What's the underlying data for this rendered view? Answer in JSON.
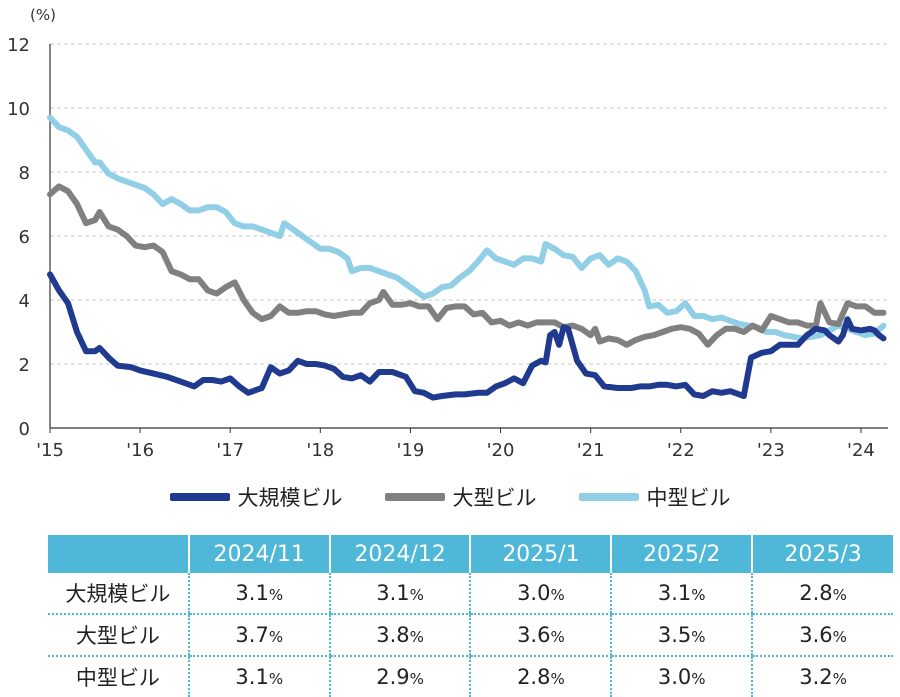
{
  "chart_data": {
    "type": "line",
    "title": "",
    "ylabel": "(%)",
    "xlabel": "",
    "ylim": [
      0,
      12
    ],
    "yticks": [
      "0",
      "2",
      "4",
      "6",
      "8",
      "10",
      "12"
    ],
    "xlim": [
      2015,
      2024.3
    ],
    "xticks": [
      {
        "x": 2015,
        "label": "'15"
      },
      {
        "x": 2016,
        "label": "'16"
      },
      {
        "x": 2017,
        "label": "'17"
      },
      {
        "x": 2018,
        "label": "'18"
      },
      {
        "x": 2019,
        "label": "'19"
      },
      {
        "x": 2020,
        "label": "'20"
      },
      {
        "x": 2021,
        "label": "'21"
      },
      {
        "x": 2022,
        "label": "'22"
      },
      {
        "x": 2023,
        "label": "'23"
      },
      {
        "x": 2024,
        "label": "'24"
      }
    ],
    "grid": true,
    "series": [
      {
        "name": "大規模ビル",
        "color": "#1f3a8f",
        "points": [
          [
            2015.0,
            4.8
          ],
          [
            2015.1,
            4.3
          ],
          [
            2015.2,
            3.9
          ],
          [
            2015.3,
            3.0
          ],
          [
            2015.4,
            2.4
          ],
          [
            2015.5,
            2.4
          ],
          [
            2015.55,
            2.5
          ],
          [
            2015.65,
            2.2
          ],
          [
            2015.75,
            1.95
          ],
          [
            2015.9,
            1.9
          ],
          [
            2016.0,
            1.8
          ],
          [
            2016.15,
            1.7
          ],
          [
            2016.3,
            1.6
          ],
          [
            2016.45,
            1.45
          ],
          [
            2016.6,
            1.3
          ],
          [
            2016.7,
            1.5
          ],
          [
            2016.8,
            1.5
          ],
          [
            2016.9,
            1.45
          ],
          [
            2017.0,
            1.55
          ],
          [
            2017.1,
            1.3
          ],
          [
            2017.2,
            1.1
          ],
          [
            2017.3,
            1.2
          ],
          [
            2017.35,
            1.25
          ],
          [
            2017.45,
            1.9
          ],
          [
            2017.55,
            1.7
          ],
          [
            2017.65,
            1.8
          ],
          [
            2017.75,
            2.1
          ],
          [
            2017.85,
            2.0
          ],
          [
            2017.95,
            2.0
          ],
          [
            2018.05,
            1.95
          ],
          [
            2018.15,
            1.85
          ],
          [
            2018.25,
            1.6
          ],
          [
            2018.35,
            1.55
          ],
          [
            2018.45,
            1.65
          ],
          [
            2018.55,
            1.45
          ],
          [
            2018.65,
            1.75
          ],
          [
            2018.8,
            1.75
          ],
          [
            2018.95,
            1.6
          ],
          [
            2019.05,
            1.15
          ],
          [
            2019.15,
            1.1
          ],
          [
            2019.25,
            0.95
          ],
          [
            2019.35,
            1.0
          ],
          [
            2019.5,
            1.05
          ],
          [
            2019.6,
            1.05
          ],
          [
            2019.75,
            1.1
          ],
          [
            2019.85,
            1.1
          ],
          [
            2019.95,
            1.3
          ],
          [
            2020.05,
            1.4
          ],
          [
            2020.15,
            1.55
          ],
          [
            2020.25,
            1.4
          ],
          [
            2020.35,
            1.95
          ],
          [
            2020.45,
            2.1
          ],
          [
            2020.5,
            2.05
          ],
          [
            2020.55,
            2.9
          ],
          [
            2020.6,
            3.0
          ],
          [
            2020.65,
            2.6
          ],
          [
            2020.7,
            3.15
          ],
          [
            2020.75,
            3.1
          ],
          [
            2020.85,
            2.1
          ],
          [
            2020.95,
            1.7
          ],
          [
            2021.05,
            1.65
          ],
          [
            2021.15,
            1.3
          ],
          [
            2021.3,
            1.25
          ],
          [
            2021.45,
            1.25
          ],
          [
            2021.55,
            1.3
          ],
          [
            2021.65,
            1.3
          ],
          [
            2021.75,
            1.35
          ],
          [
            2021.85,
            1.35
          ],
          [
            2021.95,
            1.3
          ],
          [
            2022.05,
            1.35
          ],
          [
            2022.15,
            1.05
          ],
          [
            2022.25,
            1.0
          ],
          [
            2022.35,
            1.15
          ],
          [
            2022.45,
            1.1
          ],
          [
            2022.55,
            1.15
          ],
          [
            2022.65,
            1.05
          ],
          [
            2022.7,
            1.0
          ],
          [
            2022.78,
            2.2
          ],
          [
            2022.9,
            2.35
          ],
          [
            2023.0,
            2.4
          ],
          [
            2023.1,
            2.6
          ],
          [
            2023.2,
            2.6
          ],
          [
            2023.3,
            2.6
          ],
          [
            2023.4,
            2.9
          ],
          [
            2023.5,
            3.1
          ],
          [
            2023.6,
            3.05
          ],
          [
            2023.65,
            2.9
          ],
          [
            2023.75,
            2.7
          ],
          [
            2023.8,
            2.9
          ],
          [
            2023.85,
            3.4
          ],
          [
            2023.9,
            3.1
          ],
          [
            2024.0,
            3.05
          ],
          [
            2024.1,
            3.1
          ],
          [
            2024.15,
            3.05
          ],
          [
            2024.2,
            2.9
          ],
          [
            2024.25,
            2.8
          ]
        ]
      },
      {
        "name": "大型ビル",
        "color": "#808080",
        "points": [
          [
            2015.0,
            7.3
          ],
          [
            2015.1,
            7.55
          ],
          [
            2015.2,
            7.4
          ],
          [
            2015.3,
            7.0
          ],
          [
            2015.4,
            6.4
          ],
          [
            2015.5,
            6.5
          ],
          [
            2015.55,
            6.75
          ],
          [
            2015.65,
            6.3
          ],
          [
            2015.75,
            6.2
          ],
          [
            2015.85,
            6.0
          ],
          [
            2015.95,
            5.7
          ],
          [
            2016.05,
            5.65
          ],
          [
            2016.15,
            5.7
          ],
          [
            2016.25,
            5.5
          ],
          [
            2016.35,
            4.9
          ],
          [
            2016.45,
            4.8
          ],
          [
            2016.55,
            4.65
          ],
          [
            2016.65,
            4.65
          ],
          [
            2016.75,
            4.3
          ],
          [
            2016.85,
            4.2
          ],
          [
            2016.95,
            4.4
          ],
          [
            2017.05,
            4.55
          ],
          [
            2017.15,
            4.0
          ],
          [
            2017.25,
            3.6
          ],
          [
            2017.35,
            3.4
          ],
          [
            2017.45,
            3.5
          ],
          [
            2017.55,
            3.8
          ],
          [
            2017.65,
            3.6
          ],
          [
            2017.75,
            3.6
          ],
          [
            2017.85,
            3.65
          ],
          [
            2017.95,
            3.65
          ],
          [
            2018.05,
            3.55
          ],
          [
            2018.15,
            3.5
          ],
          [
            2018.25,
            3.55
          ],
          [
            2018.35,
            3.6
          ],
          [
            2018.45,
            3.6
          ],
          [
            2018.55,
            3.9
          ],
          [
            2018.65,
            4.0
          ],
          [
            2018.7,
            4.25
          ],
          [
            2018.8,
            3.85
          ],
          [
            2018.9,
            3.85
          ],
          [
            2019.0,
            3.9
          ],
          [
            2019.1,
            3.8
          ],
          [
            2019.2,
            3.8
          ],
          [
            2019.3,
            3.4
          ],
          [
            2019.4,
            3.75
          ],
          [
            2019.5,
            3.8
          ],
          [
            2019.6,
            3.8
          ],
          [
            2019.7,
            3.55
          ],
          [
            2019.8,
            3.6
          ],
          [
            2019.9,
            3.3
          ],
          [
            2020.0,
            3.35
          ],
          [
            2020.1,
            3.2
          ],
          [
            2020.2,
            3.3
          ],
          [
            2020.3,
            3.2
          ],
          [
            2020.4,
            3.3
          ],
          [
            2020.5,
            3.3
          ],
          [
            2020.6,
            3.3
          ],
          [
            2020.7,
            3.15
          ],
          [
            2020.8,
            3.2
          ],
          [
            2020.9,
            3.1
          ],
          [
            2021.0,
            2.9
          ],
          [
            2021.05,
            3.1
          ],
          [
            2021.1,
            2.7
          ],
          [
            2021.2,
            2.8
          ],
          [
            2021.3,
            2.75
          ],
          [
            2021.4,
            2.6
          ],
          [
            2021.5,
            2.75
          ],
          [
            2021.6,
            2.85
          ],
          [
            2021.7,
            2.9
          ],
          [
            2021.8,
            3.0
          ],
          [
            2021.9,
            3.1
          ],
          [
            2022.0,
            3.15
          ],
          [
            2022.1,
            3.1
          ],
          [
            2022.2,
            2.95
          ],
          [
            2022.3,
            2.6
          ],
          [
            2022.4,
            2.9
          ],
          [
            2022.5,
            3.1
          ],
          [
            2022.6,
            3.1
          ],
          [
            2022.7,
            3.0
          ],
          [
            2022.8,
            3.2
          ],
          [
            2022.9,
            3.05
          ],
          [
            2023.0,
            3.5
          ],
          [
            2023.1,
            3.4
          ],
          [
            2023.2,
            3.3
          ],
          [
            2023.3,
            3.3
          ],
          [
            2023.4,
            3.2
          ],
          [
            2023.5,
            3.2
          ],
          [
            2023.55,
            3.9
          ],
          [
            2023.65,
            3.3
          ],
          [
            2023.75,
            3.25
          ],
          [
            2023.85,
            3.9
          ],
          [
            2023.95,
            3.8
          ],
          [
            2024.05,
            3.8
          ],
          [
            2024.15,
            3.6
          ],
          [
            2024.25,
            3.6
          ]
        ]
      },
      {
        "name": "中型ビル",
        "color": "#90cfe6",
        "points": [
          [
            2015.0,
            9.7
          ],
          [
            2015.1,
            9.4
          ],
          [
            2015.2,
            9.3
          ],
          [
            2015.3,
            9.1
          ],
          [
            2015.4,
            8.7
          ],
          [
            2015.5,
            8.3
          ],
          [
            2015.55,
            8.3
          ],
          [
            2015.65,
            7.95
          ],
          [
            2015.75,
            7.8
          ],
          [
            2015.85,
            7.7
          ],
          [
            2015.95,
            7.6
          ],
          [
            2016.05,
            7.5
          ],
          [
            2016.15,
            7.3
          ],
          [
            2016.25,
            7.0
          ],
          [
            2016.35,
            7.15
          ],
          [
            2016.45,
            7.0
          ],
          [
            2016.55,
            6.8
          ],
          [
            2016.65,
            6.8
          ],
          [
            2016.75,
            6.9
          ],
          [
            2016.85,
            6.9
          ],
          [
            2016.95,
            6.75
          ],
          [
            2017.05,
            6.4
          ],
          [
            2017.15,
            6.3
          ],
          [
            2017.25,
            6.3
          ],
          [
            2017.35,
            6.2
          ],
          [
            2017.45,
            6.1
          ],
          [
            2017.55,
            6.0
          ],
          [
            2017.6,
            6.4
          ],
          [
            2017.7,
            6.2
          ],
          [
            2017.8,
            6.0
          ],
          [
            2017.9,
            5.8
          ],
          [
            2018.0,
            5.6
          ],
          [
            2018.1,
            5.6
          ],
          [
            2018.2,
            5.5
          ],
          [
            2018.3,
            5.3
          ],
          [
            2018.35,
            4.9
          ],
          [
            2018.45,
            5.0
          ],
          [
            2018.55,
            5.0
          ],
          [
            2018.65,
            4.9
          ],
          [
            2018.75,
            4.8
          ],
          [
            2018.85,
            4.7
          ],
          [
            2018.95,
            4.5
          ],
          [
            2019.05,
            4.3
          ],
          [
            2019.15,
            4.1
          ],
          [
            2019.25,
            4.2
          ],
          [
            2019.35,
            4.4
          ],
          [
            2019.45,
            4.45
          ],
          [
            2019.55,
            4.7
          ],
          [
            2019.65,
            4.9
          ],
          [
            2019.75,
            5.2
          ],
          [
            2019.85,
            5.55
          ],
          [
            2019.95,
            5.3
          ],
          [
            2020.05,
            5.2
          ],
          [
            2020.15,
            5.1
          ],
          [
            2020.25,
            5.3
          ],
          [
            2020.35,
            5.3
          ],
          [
            2020.45,
            5.2
          ],
          [
            2020.5,
            5.75
          ],
          [
            2020.6,
            5.6
          ],
          [
            2020.7,
            5.4
          ],
          [
            2020.8,
            5.35
          ],
          [
            2020.9,
            5.0
          ],
          [
            2021.0,
            5.3
          ],
          [
            2021.1,
            5.4
          ],
          [
            2021.2,
            5.1
          ],
          [
            2021.3,
            5.3
          ],
          [
            2021.4,
            5.2
          ],
          [
            2021.5,
            4.9
          ],
          [
            2021.6,
            4.3
          ],
          [
            2021.65,
            3.8
          ],
          [
            2021.75,
            3.85
          ],
          [
            2021.85,
            3.6
          ],
          [
            2021.95,
            3.65
          ],
          [
            2022.05,
            3.9
          ],
          [
            2022.15,
            3.5
          ],
          [
            2022.25,
            3.5
          ],
          [
            2022.35,
            3.4
          ],
          [
            2022.45,
            3.45
          ],
          [
            2022.55,
            3.35
          ],
          [
            2022.65,
            3.25
          ],
          [
            2022.75,
            3.2
          ],
          [
            2022.85,
            3.15
          ],
          [
            2022.95,
            3.0
          ],
          [
            2023.05,
            3.0
          ],
          [
            2023.15,
            2.9
          ],
          [
            2023.25,
            2.85
          ],
          [
            2023.35,
            2.8
          ],
          [
            2023.45,
            2.85
          ],
          [
            2023.55,
            2.9
          ],
          [
            2023.65,
            3.05
          ],
          [
            2023.75,
            3.2
          ],
          [
            2023.85,
            3.1
          ],
          [
            2023.95,
            3.0
          ],
          [
            2024.05,
            2.9
          ],
          [
            2024.15,
            2.95
          ],
          [
            2024.25,
            3.2
          ]
        ]
      }
    ]
  },
  "legend": [
    {
      "label": "大規模ビル",
      "color": "#1f3a8f"
    },
    {
      "label": "大型ビル",
      "color": "#808080"
    },
    {
      "label": "中型ビル",
      "color": "#90cfe6"
    }
  ],
  "table": {
    "headers": [
      "",
      "2024/11",
      "2024/12",
      "2025/1",
      "2025/2",
      "2025/3"
    ],
    "unit": "%",
    "rows": [
      {
        "label": "大規模ビル",
        "values": [
          "3.1",
          "3.1",
          "3.0",
          "3.1",
          "2.8"
        ]
      },
      {
        "label": "大型ビル",
        "values": [
          "3.7",
          "3.8",
          "3.6",
          "3.5",
          "3.6"
        ]
      },
      {
        "label": "中型ビル",
        "values": [
          "3.1",
          "2.9",
          "2.8",
          "3.0",
          "3.2"
        ]
      }
    ]
  }
}
